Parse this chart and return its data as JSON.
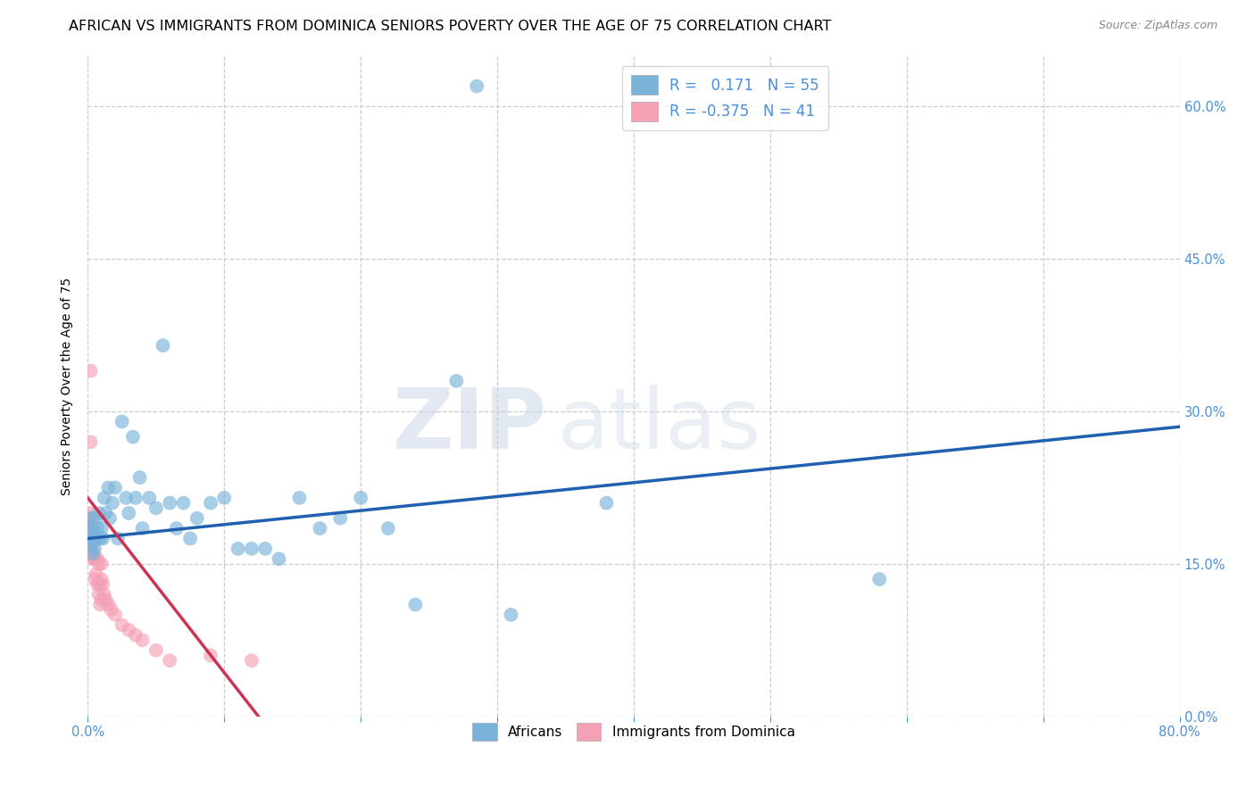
{
  "title": "AFRICAN VS IMMIGRANTS FROM DOMINICA SENIORS POVERTY OVER THE AGE OF 75 CORRELATION CHART",
  "source": "Source: ZipAtlas.com",
  "ylabel": "Seniors Poverty Over the Age of 75",
  "xlim": [
    0.0,
    0.8
  ],
  "ylim": [
    0.0,
    0.65
  ],
  "xticks": [
    0.0,
    0.1,
    0.2,
    0.3,
    0.4,
    0.5,
    0.6,
    0.7,
    0.8
  ],
  "xticklabels_ends": {
    "0.0": "0.0%",
    "0.8": "80.0%"
  },
  "yticks": [
    0.0,
    0.15,
    0.3,
    0.45,
    0.6
  ],
  "yticklabels_right": [
    "0.0%",
    "15.0%",
    "30.0%",
    "45.0%",
    "60.0%"
  ],
  "blue_color": "#7ab3d9",
  "pink_color": "#f4a0b5",
  "blue_line_color": "#2060b0",
  "pink_line_color": "#cc3355",
  "africans_x": [
    0.001,
    0.002,
    0.002,
    0.003,
    0.003,
    0.004,
    0.004,
    0.005,
    0.005,
    0.006,
    0.006,
    0.007,
    0.008,
    0.009,
    0.01,
    0.011,
    0.012,
    0.013,
    0.015,
    0.016,
    0.018,
    0.02,
    0.022,
    0.025,
    0.028,
    0.03,
    0.033,
    0.035,
    0.038,
    0.04,
    0.045,
    0.05,
    0.055,
    0.06,
    0.065,
    0.07,
    0.075,
    0.08,
    0.09,
    0.1,
    0.11,
    0.12,
    0.13,
    0.14,
    0.155,
    0.17,
    0.185,
    0.2,
    0.22,
    0.24,
    0.27,
    0.31,
    0.38,
    0.58,
    0.285
  ],
  "africans_y": [
    0.195,
    0.185,
    0.175,
    0.17,
    0.185,
    0.16,
    0.175,
    0.18,
    0.165,
    0.175,
    0.195,
    0.185,
    0.2,
    0.175,
    0.185,
    0.175,
    0.215,
    0.2,
    0.225,
    0.195,
    0.21,
    0.225,
    0.175,
    0.29,
    0.215,
    0.2,
    0.275,
    0.215,
    0.235,
    0.185,
    0.215,
    0.205,
    0.365,
    0.21,
    0.185,
    0.21,
    0.175,
    0.195,
    0.21,
    0.215,
    0.165,
    0.165,
    0.165,
    0.155,
    0.215,
    0.185,
    0.195,
    0.215,
    0.185,
    0.11,
    0.33,
    0.1,
    0.21,
    0.135,
    0.62
  ],
  "dominica_x": [
    0.001,
    0.001,
    0.001,
    0.001,
    0.002,
    0.002,
    0.002,
    0.003,
    0.003,
    0.003,
    0.004,
    0.004,
    0.004,
    0.005,
    0.005,
    0.005,
    0.006,
    0.006,
    0.007,
    0.007,
    0.008,
    0.008,
    0.009,
    0.009,
    0.01,
    0.01,
    0.01,
    0.011,
    0.012,
    0.013,
    0.015,
    0.017,
    0.02,
    0.025,
    0.03,
    0.035,
    0.04,
    0.05,
    0.06,
    0.09,
    0.12
  ],
  "dominica_y": [
    0.195,
    0.185,
    0.175,
    0.165,
    0.34,
    0.27,
    0.2,
    0.185,
    0.175,
    0.165,
    0.195,
    0.175,
    0.155,
    0.175,
    0.155,
    0.135,
    0.155,
    0.14,
    0.155,
    0.13,
    0.15,
    0.12,
    0.13,
    0.11,
    0.15,
    0.135,
    0.115,
    0.13,
    0.12,
    0.115,
    0.11,
    0.105,
    0.1,
    0.09,
    0.085,
    0.08,
    0.075,
    0.065,
    0.055,
    0.06,
    0.055
  ],
  "blue_line_x": [
    0.0,
    0.8
  ],
  "blue_line_y": [
    0.175,
    0.285
  ],
  "pink_line_x": [
    0.0,
    0.125
  ],
  "pink_line_y": [
    0.215,
    0.0
  ],
  "watermark_zip": "ZIP",
  "watermark_atlas": "atlas",
  "background_color": "#ffffff",
  "grid_color": "#cccccc",
  "axis_color": "#4a90d9",
  "title_fontsize": 11.5,
  "label_fontsize": 10,
  "tick_fontsize": 10.5
}
